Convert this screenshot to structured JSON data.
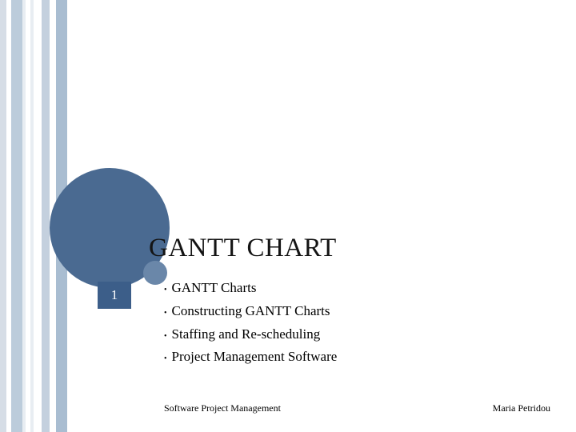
{
  "colors": {
    "circle_large": "#4a6a91",
    "circle_small": "#6a87a9",
    "page_box_bg": "#3c5e89",
    "page_box_text": "#ffffff",
    "text": "#000000",
    "title": "#141414",
    "stripes": [
      "#d6dde6",
      "#ffffff",
      "#bcccdb",
      "#e8edf2",
      "#ffffff",
      "#e8edf2",
      "#ffffff",
      "#c4d0de",
      "#ffffff",
      "#a9bdd1",
      "#ffffff"
    ]
  },
  "typography": {
    "title_fontsize": 33,
    "bullet_fontsize": 17,
    "page_number_fontsize": 17,
    "footer_fontsize": 12,
    "font_family": "Georgia, 'Times New Roman', serif"
  },
  "title": "GANTT CHART",
  "page_number": "1",
  "bullets": [
    "GANTT Charts",
    "Constructing GANTT Charts",
    "Staffing and Re-scheduling",
    "Project Management Software"
  ],
  "footer": {
    "left": "Software Project Management",
    "right": "Maria Petridou"
  }
}
